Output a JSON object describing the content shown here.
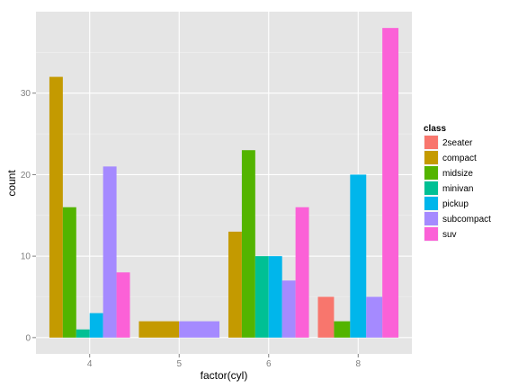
{
  "chart_data": {
    "type": "bar",
    "position": "dodge",
    "xlabel": "factor(cyl)",
    "ylabel": "count",
    "ylim": [
      -2,
      40
    ],
    "yticks": [
      0,
      10,
      20,
      30
    ],
    "grid": true,
    "background": "#e5e5e5",
    "legend_position": "right",
    "categories": [
      "4",
      "5",
      "6",
      "8"
    ],
    "legend": {
      "title": "class",
      "entries": [
        {
          "name": "2seater",
          "color": "#f8766d"
        },
        {
          "name": "compact",
          "color": "#c49a00"
        },
        {
          "name": "midsize",
          "color": "#53b400"
        },
        {
          "name": "minivan",
          "color": "#00c094"
        },
        {
          "name": "pickup",
          "color": "#00b6eb"
        },
        {
          "name": "subcompact",
          "color": "#a58aff"
        },
        {
          "name": "suv",
          "color": "#fb61d7"
        }
      ]
    },
    "groups": [
      {
        "category": "4",
        "bars": [
          {
            "class": "compact",
            "value": 32
          },
          {
            "class": "midsize",
            "value": 16
          },
          {
            "class": "minivan",
            "value": 1
          },
          {
            "class": "pickup",
            "value": 3
          },
          {
            "class": "subcompact",
            "value": 21
          },
          {
            "class": "suv",
            "value": 8
          }
        ]
      },
      {
        "category": "5",
        "bars": [
          {
            "class": "compact",
            "value": 2
          },
          {
            "class": "subcompact",
            "value": 2
          }
        ]
      },
      {
        "category": "6",
        "bars": [
          {
            "class": "compact",
            "value": 13
          },
          {
            "class": "midsize",
            "value": 23
          },
          {
            "class": "minivan",
            "value": 10
          },
          {
            "class": "pickup",
            "value": 10
          },
          {
            "class": "subcompact",
            "value": 7
          },
          {
            "class": "suv",
            "value": 16
          }
        ]
      },
      {
        "category": "8",
        "bars": [
          {
            "class": "2seater",
            "value": 5
          },
          {
            "class": "midsize",
            "value": 2
          },
          {
            "class": "pickup",
            "value": 20
          },
          {
            "class": "subcompact",
            "value": 5
          },
          {
            "class": "suv",
            "value": 38
          }
        ]
      }
    ]
  }
}
